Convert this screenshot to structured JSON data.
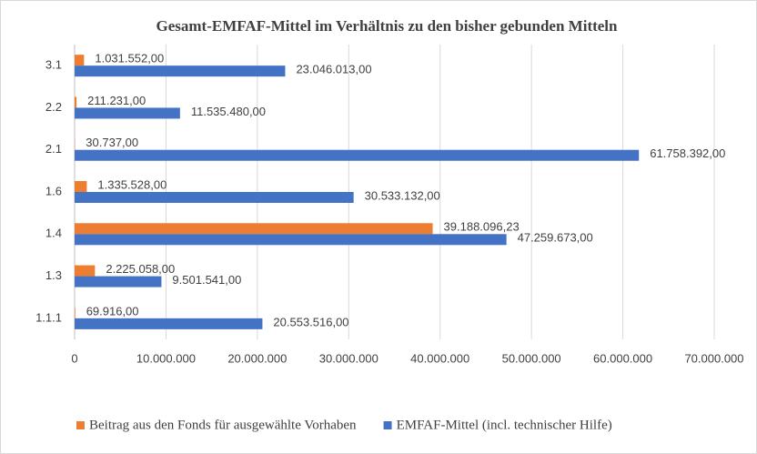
{
  "chart_data": {
    "type": "hbar",
    "title": "Gesamt-EMFAF-Mittel im Verhältnis zu den bisher gebunden Mitteln",
    "categories": [
      "3.1",
      "2.2",
      "2.1",
      "1.6",
      "1.4",
      "1.3",
      "1.1.1"
    ],
    "series": [
      {
        "name": "Beitrag aus den Fonds für ausgewählte Vorhaben",
        "color": "#ed7d31",
        "values": [
          1031552,
          211231,
          30737,
          1335528,
          39188096.23,
          2225058,
          69916
        ],
        "value_labels": [
          "1.031.552,00",
          "211.231,00",
          "30.737,00",
          "1.335.528,00",
          "39.188.096,23",
          "2.225.058,00",
          "69.916,00"
        ]
      },
      {
        "name": "EMFAF-Mittel (incl. technischer Hilfe)",
        "color": "#4472c4",
        "values": [
          23046013,
          11535480,
          61758392,
          30533132,
          47259673,
          9501541,
          20553516
        ],
        "value_labels": [
          "23.046.013,00",
          "11.535.480,00",
          "61.758.392,00",
          "30.533.132,00",
          "47.259.673,00",
          "9.501.541,00",
          "20.553.516,00"
        ]
      }
    ],
    "xlim": [
      0,
      70000000
    ],
    "xticks": [
      0,
      {
        "value": 10000000,
        "label": "10.000.000"
      },
      {
        "value": 20000000,
        "label": "20.000.000"
      },
      {
        "value": 30000000,
        "label": "30.000.000"
      },
      {
        "value": 40000000,
        "label": "40.000.000"
      },
      {
        "value": 50000000,
        "label": "50.000.000"
      },
      {
        "value": 60000000,
        "label": "60.000.000"
      },
      {
        "value": 70000000,
        "label": "70.000.000"
      }
    ],
    "grid": true,
    "legend": "bottom"
  }
}
